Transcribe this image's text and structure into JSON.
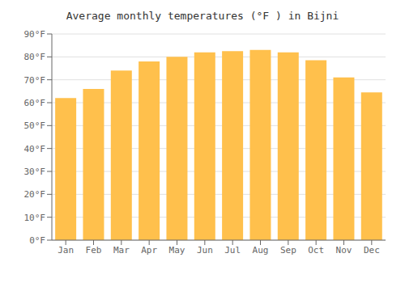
{
  "chart_data": {
    "type": "bar",
    "title": "Average monthly temperatures (°F ) in Bijni",
    "categories": [
      "Jan",
      "Feb",
      "Mar",
      "Apr",
      "May",
      "Jun",
      "Jul",
      "Aug",
      "Sep",
      "Oct",
      "Nov",
      "Dec"
    ],
    "values": [
      62,
      66,
      74,
      78,
      80,
      82,
      82.5,
      83,
      82,
      78.5,
      71,
      64.5
    ],
    "color": "#FFC04C",
    "ylim": [
      0,
      90
    ],
    "yticks": [
      {
        "value": 0,
        "label": "0°F"
      },
      {
        "value": 10,
        "label": "10°F"
      },
      {
        "value": 20,
        "label": "20°F"
      },
      {
        "value": 30,
        "label": "30°F"
      },
      {
        "value": 40,
        "label": "40°F"
      },
      {
        "value": 50,
        "label": "50°F"
      },
      {
        "value": 60,
        "label": "60°F"
      },
      {
        "value": 70,
        "label": "70°F"
      },
      {
        "value": 80,
        "label": "80°F"
      },
      {
        "value": 90,
        "label": "90°F"
      }
    ],
    "grid": true
  }
}
